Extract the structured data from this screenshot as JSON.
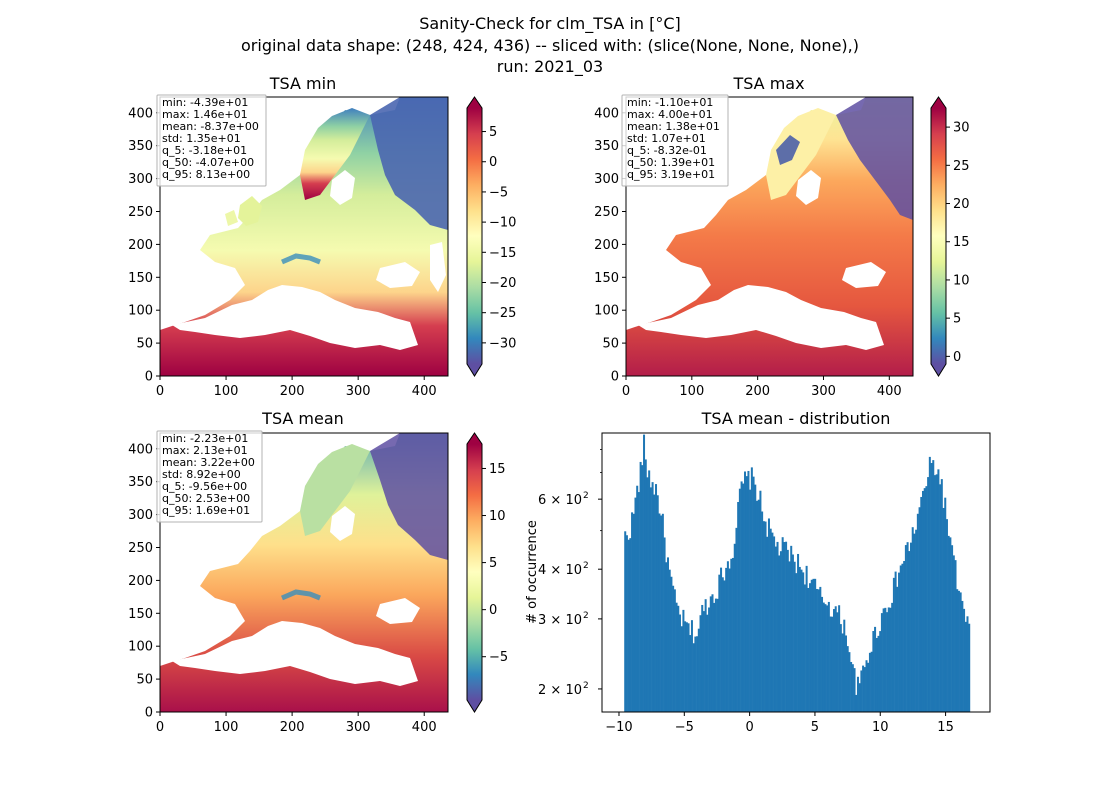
{
  "suptitle": {
    "line1": "Sanity-Check for clm_TSA in [°C]",
    "line2": "original data shape: (248, 424, 436) -- sliced with: (slice(None, None, None),)",
    "line3": "run: 2021_03"
  },
  "colormap": "Spectral_r",
  "chart_data": [
    {
      "type": "heatmap",
      "title": "TSA min",
      "xlim": [
        0,
        436
      ],
      "ylim": [
        0,
        424
      ],
      "xticks": [
        "0",
        "100",
        "200",
        "300",
        "400"
      ],
      "yticks": [
        "0",
        "50",
        "100",
        "150",
        "200",
        "250",
        "300",
        "350",
        "400"
      ],
      "colorbar": {
        "vmin": -33.5,
        "vmax": 8.9,
        "ticks": [
          "5",
          "0",
          "−5",
          "−10",
          "−15",
          "−20",
          "−25",
          "−30"
        ],
        "tick_values": [
          5,
          0,
          -5,
          -10,
          -15,
          -20,
          -25,
          -30
        ]
      },
      "stats": [
        "min: -4.39e+01",
        "max: 1.46e+01",
        "mean: -8.37e+00",
        "std: 1.35e+01",
        "q_5: -3.18e+01",
        "q_50: -4.07e+00",
        "q_95: 8.13e+00"
      ]
    },
    {
      "type": "heatmap",
      "title": "TSA max",
      "xlim": [
        0,
        436
      ],
      "ylim": [
        0,
        424
      ],
      "xticks": [
        "0",
        "100",
        "200",
        "300",
        "400"
      ],
      "yticks": [
        "0",
        "50",
        "100",
        "150",
        "200",
        "250",
        "300",
        "350",
        "400"
      ],
      "colorbar": {
        "vmin": -1.0,
        "vmax": 32.5,
        "ticks": [
          "30",
          "25",
          "20",
          "15",
          "10",
          "5",
          "0"
        ],
        "tick_values": [
          30,
          25,
          20,
          15,
          10,
          5,
          0
        ]
      },
      "stats": [
        "min: -1.10e+01",
        "max: 4.00e+01",
        "mean: 1.38e+01",
        "std: 1.07e+01",
        "q_5: -8.32e-01",
        "q_50: 1.39e+01",
        "q_95: 3.19e+01"
      ]
    },
    {
      "type": "heatmap",
      "title": "TSA mean",
      "xlim": [
        0,
        436
      ],
      "ylim": [
        0,
        424
      ],
      "xticks": [
        "0",
        "100",
        "200",
        "300",
        "400"
      ],
      "yticks": [
        "0",
        "50",
        "100",
        "150",
        "200",
        "250",
        "300",
        "350",
        "400"
      ],
      "colorbar": {
        "vmin": -9.6,
        "vmax": 17.6,
        "ticks": [
          "15",
          "10",
          "5",
          "0",
          "−5"
        ],
        "tick_values": [
          15,
          10,
          5,
          0,
          -5
        ]
      },
      "stats": [
        "min: -2.23e+01",
        "max: 2.13e+01",
        "mean: 3.22e+00",
        "std: 8.92e+00",
        "q_5: -9.56e+00",
        "q_50: 2.53e+00",
        "q_95: 1.69e+01"
      ]
    },
    {
      "type": "bar",
      "title": "TSA mean - distribution",
      "ylabel": "# of occurrence",
      "xlim": [
        -11.3,
        18.4
      ],
      "ylim": [
        175,
        880
      ],
      "yscale": "log",
      "xticks": [
        "−10",
        "−5",
        "0",
        "5",
        "10",
        "15"
      ],
      "xtick_values": [
        -10,
        -5,
        0,
        5,
        10,
        15
      ],
      "yticks": [
        {
          "value": 200,
          "base": "2 × 10",
          "exp": "2"
        },
        {
          "value": 300,
          "base": "3 × 10",
          "exp": "2"
        },
        {
          "value": 400,
          "base": "4 × 10",
          "exp": "2"
        },
        {
          "value": 600,
          "base": "6 × 10",
          "exp": "2"
        }
      ],
      "bar_color": "#1f77b4",
      "bin_start": -9.6,
      "bin_width": 0.131,
      "control_points": [
        [
          -9.6,
          480
        ],
        [
          -9.3,
          490
        ],
        [
          -9.0,
          530
        ],
        [
          -8.6,
          630
        ],
        [
          -8.3,
          720
        ],
        [
          -8.1,
          820
        ],
        [
          -7.8,
          700
        ],
        [
          -7.5,
          660
        ],
        [
          -7.2,
          640
        ],
        [
          -6.8,
          560
        ],
        [
          -6.5,
          470
        ],
        [
          -6.2,
          400
        ],
        [
          -5.8,
          340
        ],
        [
          -5.5,
          315
        ],
        [
          -5.2,
          300
        ],
        [
          -4.8,
          285
        ],
        [
          -4.5,
          280
        ],
        [
          -4.0,
          275
        ],
        [
          -3.6,
          315
        ],
        [
          -3.2,
          330
        ],
        [
          -2.8,
          345
        ],
        [
          -2.4,
          365
        ],
        [
          -2.0,
          395
        ],
        [
          -1.6,
          420
        ],
        [
          -1.2,
          460
        ],
        [
          -0.9,
          560
        ],
        [
          -0.6,
          650
        ],
        [
          -0.3,
          670
        ],
        [
          0.1,
          680
        ],
        [
          0.4,
          655
        ],
        [
          0.7,
          610
        ],
        [
          1.1,
          540
        ],
        [
          1.5,
          500
        ],
        [
          1.9,
          470
        ],
        [
          2.3,
          450
        ],
        [
          2.7,
          450
        ],
        [
          3.1,
          435
        ],
        [
          3.5,
          420
        ],
        [
          3.9,
          405
        ],
        [
          4.3,
          390
        ],
        [
          4.7,
          370
        ],
        [
          5.1,
          355
        ],
        [
          5.5,
          335
        ],
        [
          5.9,
          335
        ],
        [
          6.3,
          320
        ],
        [
          6.7,
          310
        ],
        [
          7.1,
          295
        ],
        [
          7.5,
          270
        ],
        [
          7.9,
          220
        ],
        [
          8.3,
          200
        ],
        [
          8.6,
          215
        ],
        [
          9.0,
          240
        ],
        [
          9.4,
          265
        ],
        [
          9.8,
          285
        ],
        [
          10.2,
          310
        ],
        [
          10.6,
          330
        ],
        [
          11.0,
          355
        ],
        [
          11.4,
          390
        ],
        [
          11.8,
          425
        ],
        [
          12.2,
          460
        ],
        [
          12.6,
          500
        ],
        [
          13.0,
          560
        ],
        [
          13.4,
          640
        ],
        [
          13.8,
          720
        ],
        [
          14.1,
          735
        ],
        [
          14.4,
          700
        ],
        [
          14.7,
          650
        ],
        [
          15.0,
          560
        ],
        [
          15.3,
          480
        ],
        [
          15.6,
          420
        ],
        [
          15.9,
          370
        ],
        [
          16.2,
          330
        ],
        [
          16.5,
          300
        ],
        [
          16.8,
          280
        ]
      ]
    }
  ]
}
